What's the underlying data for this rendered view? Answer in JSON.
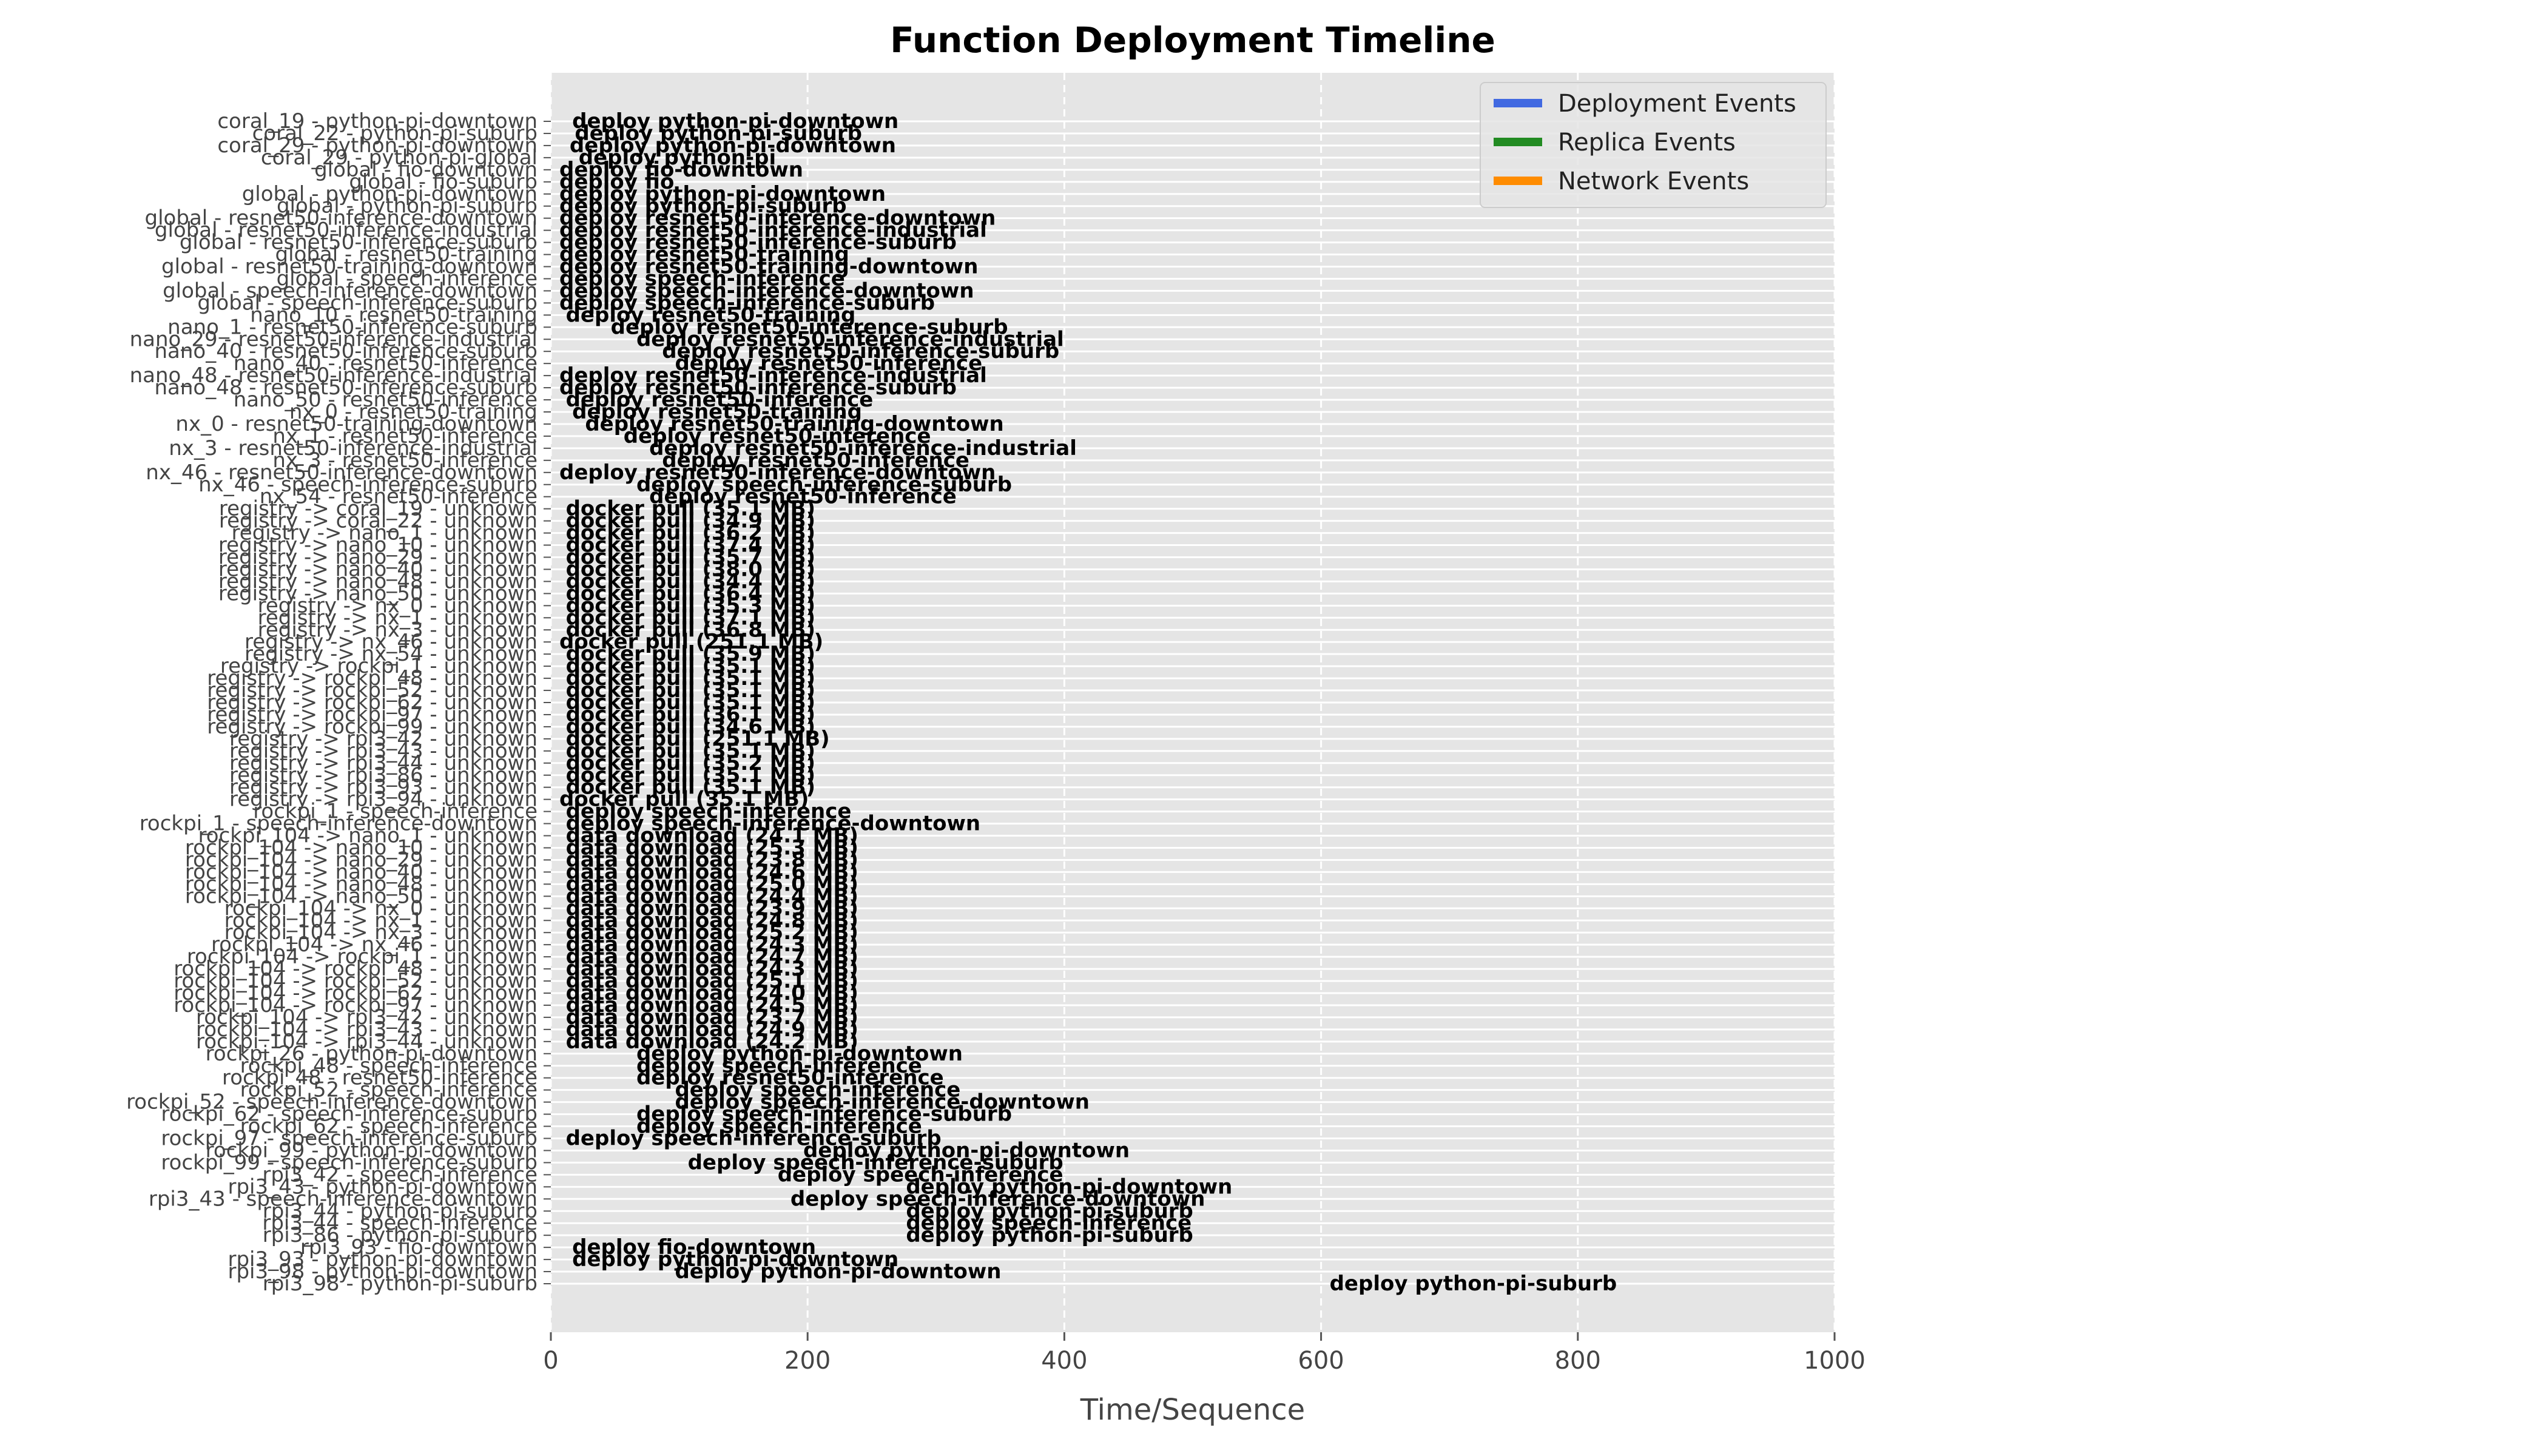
{
  "chart_data": {
    "type": "timeline",
    "title": "Function Deployment Timeline",
    "xlabel": "Time/Sequence",
    "ylabel": "",
    "xlim": [
      0,
      1000
    ],
    "xticks": [
      0,
      200,
      400,
      600,
      800,
      1000
    ],
    "grid": true,
    "legend_position": "top-right",
    "legend": [
      {
        "name": "Deployment Events",
        "color": "#4169e1"
      },
      {
        "name": "Replica Events",
        "color": "#228b22"
      },
      {
        "name": "Network Events",
        "color": "#ff8c00"
      }
    ],
    "rows": [
      {
        "label": "coral_19 - python-pi-downtown",
        "events": [
          {
            "x": 10,
            "text": "deploy python-pi-downtown"
          }
        ]
      },
      {
        "label": "coral_22 - python-pi-suburb",
        "events": [
          {
            "x": 12,
            "text": "deploy python-pi-suburb"
          }
        ]
      },
      {
        "label": "coral_29 - python-pi-downtown",
        "events": [
          {
            "x": 8,
            "text": "deploy python-pi-downtown"
          }
        ]
      },
      {
        "label": "coral_29 - python-pi-global",
        "events": [
          {
            "x": 15,
            "text": "deploy python-pi"
          }
        ]
      },
      {
        "label": "global - fio-downtown",
        "events": [
          {
            "x": 0,
            "text": "deploy fio-downtown"
          }
        ]
      },
      {
        "label": "global - fio-suburb",
        "events": [
          {
            "x": 0,
            "text": "deploy fio"
          }
        ]
      },
      {
        "label": "global - python-pi-downtown",
        "events": [
          {
            "x": 0,
            "text": "deploy python-pi-downtown"
          }
        ]
      },
      {
        "label": "global - python-pi-suburb",
        "events": [
          {
            "x": 0,
            "text": "deploy python-pi-suburb"
          }
        ]
      },
      {
        "label": "global - resnet50-inference-downtown",
        "events": [
          {
            "x": 0,
            "text": "deploy resnet50-inference-downtown"
          }
        ]
      },
      {
        "label": "global - resnet50-inference-industrial",
        "events": [
          {
            "x": 0,
            "text": "deploy resnet50-inference-industrial"
          }
        ]
      },
      {
        "label": "global - resnet50-inference-suburb",
        "events": [
          {
            "x": 0,
            "text": "deploy resnet50-inference-suburb"
          }
        ]
      },
      {
        "label": "global - resnet50-training",
        "events": [
          {
            "x": 0,
            "text": "deploy resnet50-training"
          }
        ]
      },
      {
        "label": "global - resnet50-training-downtown",
        "events": [
          {
            "x": 0,
            "text": "deploy resnet50-training-downtown"
          }
        ]
      },
      {
        "label": "global - speech-inference",
        "events": [
          {
            "x": 0,
            "text": "deploy speech-inference"
          }
        ]
      },
      {
        "label": "global - speech-inference-downtown",
        "events": [
          {
            "x": 0,
            "text": "deploy speech-inference-downtown"
          }
        ]
      },
      {
        "label": "global - speech-inference-suburb",
        "events": [
          {
            "x": 0,
            "text": "deploy speech-inference-suburb"
          }
        ]
      },
      {
        "label": "nano_10 - resnet50-training",
        "events": [
          {
            "x": 5,
            "text": "deploy resnet50-training"
          }
        ]
      },
      {
        "label": "nano_1 - resnet50-inference-suburb",
        "events": [
          {
            "x": 40,
            "text": "deploy resnet50-inference-suburb"
          }
        ]
      },
      {
        "label": "nano_29 - resnet50-inference-industrial",
        "events": [
          {
            "x": 60,
            "text": "deploy resnet50-inference-industrial"
          }
        ]
      },
      {
        "label": "nano_40 - resnet50-inference-suburb",
        "events": [
          {
            "x": 80,
            "text": "deploy resnet50-inference-suburb"
          }
        ]
      },
      {
        "label": "nano_40 - resnet50-inference",
        "events": [
          {
            "x": 90,
            "text": "deploy resnet50-inference"
          }
        ]
      },
      {
        "label": "nano_48 - resnet50-inference-industrial",
        "events": [
          {
            "x": 0,
            "text": "deploy resnet50-inference-industrial"
          }
        ]
      },
      {
        "label": "nano_48 - resnet50-inference-suburb",
        "events": [
          {
            "x": 0,
            "text": "deploy resnet50-inference-suburb"
          }
        ]
      },
      {
        "label": "nano_50 - resnet50-inference",
        "events": [
          {
            "x": 5,
            "text": "deploy resnet50-inference"
          }
        ]
      },
      {
        "label": "nx_0 - resnet50-training",
        "events": [
          {
            "x": 10,
            "text": "deploy resnet50-training"
          }
        ]
      },
      {
        "label": "nx_0 - resnet50-training-downtown",
        "events": [
          {
            "x": 20,
            "text": "deploy resnet50-training-downtown"
          }
        ]
      },
      {
        "label": "nx_1 - resnet50-inference",
        "events": [
          {
            "x": 50,
            "text": "deploy resnet50-inference"
          }
        ]
      },
      {
        "label": "nx_3 - resnet50-inference-industrial",
        "events": [
          {
            "x": 70,
            "text": "deploy resnet50-inference-industrial"
          }
        ]
      },
      {
        "label": "nx_3 - resnet50-inference",
        "events": [
          {
            "x": 80,
            "text": "deploy resnet50-inference"
          }
        ]
      },
      {
        "label": "nx_46 - resnet50-inference-downtown",
        "events": [
          {
            "x": 0,
            "text": "deploy resnet50-inference-downtown"
          }
        ]
      },
      {
        "label": "nx_46 - speech-inference-suburb",
        "events": [
          {
            "x": 60,
            "text": "deploy speech-inference-suburb"
          }
        ]
      },
      {
        "label": "nx_54 - resnet50-inference",
        "events": [
          {
            "x": 70,
            "text": "deploy resnet50-inference"
          }
        ]
      },
      {
        "label": "registry -> coral_19 - unknown",
        "events": [
          {
            "x": 5,
            "text": "docker pull (35.1 MB)"
          }
        ]
      },
      {
        "label": "registry -> coral_22 - unknown",
        "events": [
          {
            "x": 5,
            "text": "docker pull (34.9 MB)"
          }
        ]
      },
      {
        "label": "registry -> nano_1 - unknown",
        "events": [
          {
            "x": 5,
            "text": "docker pull (36.2 MB)"
          }
        ]
      },
      {
        "label": "registry -> nano_10 - unknown",
        "events": [
          {
            "x": 5,
            "text": "docker pull (37.4 MB)"
          }
        ]
      },
      {
        "label": "registry -> nano_29 - unknown",
        "events": [
          {
            "x": 5,
            "text": "docker pull (35.7 MB)"
          }
        ]
      },
      {
        "label": "registry -> nano_40 - unknown",
        "events": [
          {
            "x": 5,
            "text": "docker pull (38.0 MB)"
          }
        ]
      },
      {
        "label": "registry -> nano_48 - unknown",
        "events": [
          {
            "x": 5,
            "text": "docker pull (34.4 MB)"
          }
        ]
      },
      {
        "label": "registry -> nano_50 - unknown",
        "events": [
          {
            "x": 5,
            "text": "docker pull (36.4 MB)"
          }
        ]
      },
      {
        "label": "registry -> nx_0 - unknown",
        "events": [
          {
            "x": 5,
            "text": "docker pull (35.3 MB)"
          }
        ]
      },
      {
        "label": "registry -> nx_1 - unknown",
        "events": [
          {
            "x": 5,
            "text": "docker pull (37.1 MB)"
          }
        ]
      },
      {
        "label": "registry -> nx_3 - unknown",
        "events": [
          {
            "x": 5,
            "text": "docker pull (36.8 MB)"
          }
        ]
      },
      {
        "label": "registry -> nx_46 - unknown",
        "events": [
          {
            "x": 0,
            "text": "docker pull (251.1 MB)"
          }
        ]
      },
      {
        "label": "registry -> nx_54 - unknown",
        "events": [
          {
            "x": 5,
            "text": "docker pull (35.9 MB)"
          }
        ]
      },
      {
        "label": "registry -> rockpi_1 - unknown",
        "events": [
          {
            "x": 5,
            "text": "docker pull (35.1 MB)"
          }
        ]
      },
      {
        "label": "registry -> rockpi_48 - unknown",
        "events": [
          {
            "x": 5,
            "text": "docker pull (35.1 MB)"
          }
        ]
      },
      {
        "label": "registry -> rockpi_52 - unknown",
        "events": [
          {
            "x": 5,
            "text": "docker pull (35.1 MB)"
          }
        ]
      },
      {
        "label": "registry -> rockpi_62 - unknown",
        "events": [
          {
            "x": 5,
            "text": "docker pull (35.1 MB)"
          }
        ]
      },
      {
        "label": "registry -> rockpi_97 - unknown",
        "events": [
          {
            "x": 5,
            "text": "docker pull (36.1 MB)"
          }
        ]
      },
      {
        "label": "registry -> rockpi_99 - unknown",
        "events": [
          {
            "x": 5,
            "text": "docker pull (34.6 MB)"
          }
        ]
      },
      {
        "label": "registry -> rpi3_42 - unknown",
        "events": [
          {
            "x": 5,
            "text": "docker pull (251.1 MB)"
          }
        ]
      },
      {
        "label": "registry -> rpi3_43 - unknown",
        "events": [
          {
            "x": 5,
            "text": "docker pull (35.1 MB)"
          }
        ]
      },
      {
        "label": "registry -> rpi3_44 - unknown",
        "events": [
          {
            "x": 5,
            "text": "docker pull (35.2 MB)"
          }
        ]
      },
      {
        "label": "registry -> rpi3_86 - unknown",
        "events": [
          {
            "x": 5,
            "text": "docker pull (35.1 MB)"
          }
        ]
      },
      {
        "label": "registry -> rpi3_93 - unknown",
        "events": [
          {
            "x": 5,
            "text": "docker pull (35.1 MB)"
          }
        ]
      },
      {
        "label": "registry -> rpi3_94 - unknown",
        "events": [
          {
            "x": 0,
            "text": "docker pull (35.1 MB)"
          }
        ]
      },
      {
        "label": "rockpi_1 - speech-inference",
        "events": [
          {
            "x": 5,
            "text": "deploy speech-inference"
          }
        ]
      },
      {
        "label": "rockpi_1 - speech-inference-downtown",
        "events": [
          {
            "x": 5,
            "text": "deploy speech-inference-downtown"
          }
        ]
      },
      {
        "label": "rockpi_104 -> nano_1 - unknown",
        "events": [
          {
            "x": 5,
            "text": "data download (24.1 MB)"
          }
        ]
      },
      {
        "label": "rockpi_104 -> nano_10 - unknown",
        "events": [
          {
            "x": 5,
            "text": "data download (25.3 MB)"
          }
        ]
      },
      {
        "label": "rockpi_104 -> nano_29 - unknown",
        "events": [
          {
            "x": 5,
            "text": "data download (23.8 MB)"
          }
        ]
      },
      {
        "label": "rockpi_104 -> nano_40 - unknown",
        "events": [
          {
            "x": 5,
            "text": "data download (24.6 MB)"
          }
        ]
      },
      {
        "label": "rockpi_104 -> nano_48 - unknown",
        "events": [
          {
            "x": 5,
            "text": "data download (25.0 MB)"
          }
        ]
      },
      {
        "label": "rockpi_104 -> nano_50 - unknown",
        "events": [
          {
            "x": 5,
            "text": "data download (24.4 MB)"
          }
        ]
      },
      {
        "label": "rockpi_104 -> nx_0 - unknown",
        "events": [
          {
            "x": 5,
            "text": "data download (23.9 MB)"
          }
        ]
      },
      {
        "label": "rockpi_104 -> nx_1 - unknown",
        "events": [
          {
            "x": 5,
            "text": "data download (24.8 MB)"
          }
        ]
      },
      {
        "label": "rockpi_104 -> nx_3 - unknown",
        "events": [
          {
            "x": 5,
            "text": "data download (25.2 MB)"
          }
        ]
      },
      {
        "label": "rockpi_104 -> nx_46 - unknown",
        "events": [
          {
            "x": 5,
            "text": "data download (24.3 MB)"
          }
        ]
      },
      {
        "label": "rockpi_104 -> rockpi_1 - unknown",
        "events": [
          {
            "x": 5,
            "text": "data download (24.7 MB)"
          }
        ]
      },
      {
        "label": "rockpi_104 -> rockpi_48 - unknown",
        "events": [
          {
            "x": 5,
            "text": "data download (24.3 MB)"
          }
        ]
      },
      {
        "label": "rockpi_104 -> rockpi_52 - unknown",
        "events": [
          {
            "x": 5,
            "text": "data download (25.1 MB)"
          }
        ]
      },
      {
        "label": "rockpi_104 -> rockpi_62 - unknown",
        "events": [
          {
            "x": 5,
            "text": "data download (24.0 MB)"
          }
        ]
      },
      {
        "label": "rockpi_104 -> rockpi_97 - unknown",
        "events": [
          {
            "x": 5,
            "text": "data download (24.5 MB)"
          }
        ]
      },
      {
        "label": "rockpi_104 -> rpi3_42 - unknown",
        "events": [
          {
            "x": 5,
            "text": "data download (23.7 MB)"
          }
        ]
      },
      {
        "label": "rockpi_104 -> rpi3_43 - unknown",
        "events": [
          {
            "x": 5,
            "text": "data download (24.9 MB)"
          }
        ]
      },
      {
        "label": "rockpi_104 -> rpi3_44 - unknown",
        "events": [
          {
            "x": 5,
            "text": "data download (24.2 MB)"
          }
        ]
      },
      {
        "label": "rockpi_26 - python-pi-downtown",
        "events": [
          {
            "x": 60,
            "text": "deploy python-pi-downtown"
          }
        ]
      },
      {
        "label": "rockpi_48 - speech-inference",
        "events": [
          {
            "x": 60,
            "text": "deploy speech-inference"
          }
        ]
      },
      {
        "label": "rockpi_48 - resnet50-inference",
        "events": [
          {
            "x": 60,
            "text": "deploy resnet50-inference"
          }
        ]
      },
      {
        "label": "rockpi_52 - speech-inference",
        "events": [
          {
            "x": 90,
            "text": "deploy speech-inference"
          }
        ]
      },
      {
        "label": "rockpi_52 - speech-inference-downtown",
        "events": [
          {
            "x": 90,
            "text": "deploy speech-inference-downtown"
          }
        ]
      },
      {
        "label": "rockpi_62 - speech-inference-suburb",
        "events": [
          {
            "x": 60,
            "text": "deploy speech-inference-suburb"
          }
        ]
      },
      {
        "label": "rockpi_62 - speech-inference",
        "events": [
          {
            "x": 60,
            "text": "deploy speech-inference"
          }
        ]
      },
      {
        "label": "rockpi_97 - speech-inference-suburb",
        "events": [
          {
            "x": 5,
            "text": "deploy speech-inference-suburb"
          }
        ]
      },
      {
        "label": "rockpi_99 - python-pi-downtown",
        "events": [
          {
            "x": 190,
            "text": "deploy python-pi-downtown"
          }
        ]
      },
      {
        "label": "rockpi_99 - speech-inference-suburb",
        "events": [
          {
            "x": 100,
            "text": "deploy speech-inference-suburb"
          }
        ]
      },
      {
        "label": "rpi3_42 - speech-inference",
        "events": [
          {
            "x": 170,
            "text": "deploy speech-inference"
          }
        ]
      },
      {
        "label": "rpi3_43 - python-pi-downtown",
        "events": [
          {
            "x": 270,
            "text": "deploy python-pi-downtown"
          }
        ]
      },
      {
        "label": "rpi3_43 - speech-inference-downtown",
        "events": [
          {
            "x": 180,
            "text": "deploy speech-inference-downtown"
          }
        ]
      },
      {
        "label": "rpi3_44 - python-pi-suburb",
        "events": [
          {
            "x": 270,
            "text": "deploy python-pi-suburb"
          }
        ]
      },
      {
        "label": "rpi3_44 - speech-inference",
        "events": [
          {
            "x": 270,
            "text": "deploy speech-inference"
          }
        ]
      },
      {
        "label": "rpi3_86 - python-pi-suburb",
        "events": [
          {
            "x": 270,
            "text": "deploy python-pi-suburb"
          }
        ]
      },
      {
        "label": "rpi3_93 - fio-downtown",
        "events": [
          {
            "x": 10,
            "text": "deploy fio-downtown"
          }
        ]
      },
      {
        "label": "rpi3_93 - python-pi-downtown",
        "events": [
          {
            "x": 10,
            "text": "deploy python-pi-downtown"
          }
        ]
      },
      {
        "label": "rpi3_98 - python-pi-downtown",
        "events": [
          {
            "x": 90,
            "text": "deploy python-pi-downtown"
          }
        ]
      },
      {
        "label": "rpi3_98 - python-pi-suburb",
        "events": [
          {
            "x": 600,
            "text": "deploy python-pi-suburb"
          }
        ]
      }
    ]
  }
}
